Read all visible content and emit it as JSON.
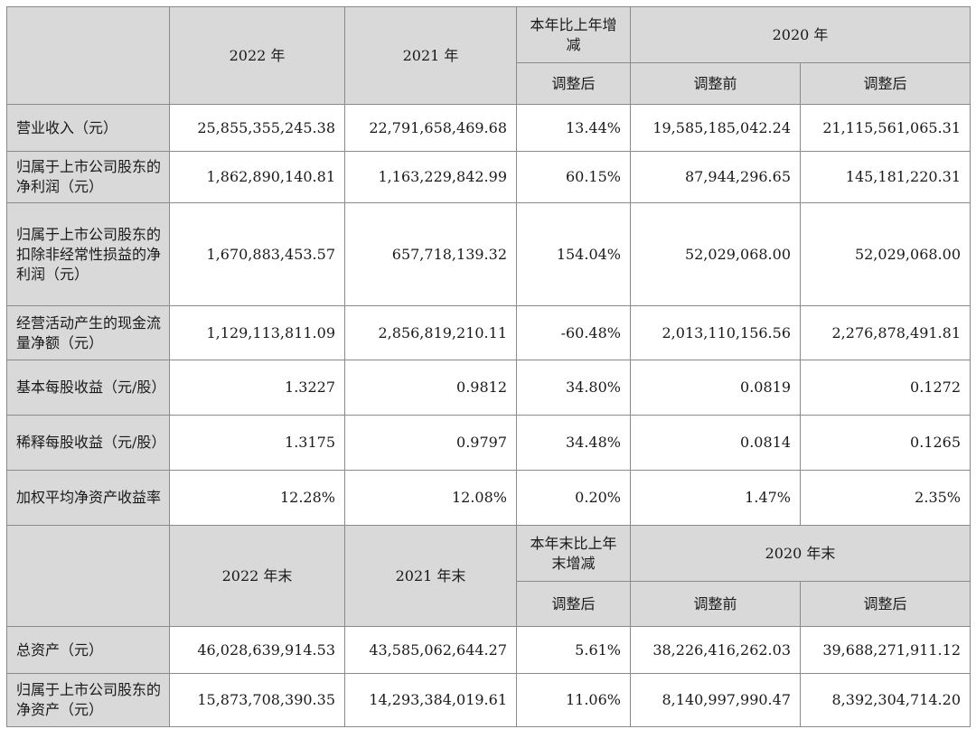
{
  "header1": {
    "col_2022": "2022 年",
    "col_2021": "2021 年",
    "col_change": "本年比上年增减",
    "col_2020": "2020 年",
    "sub_change": "调整后",
    "sub_before": "调整前",
    "sub_after": "调整后"
  },
  "rows1": [
    {
      "label": "营业收入（元）",
      "v2022": "25,855,355,245.38",
      "v2021": "22,791,658,469.68",
      "change": "13.44%",
      "before": "19,585,185,042.24",
      "after": "21,115,561,065.31"
    },
    {
      "label": "归属于上市公司股东的净利润（元）",
      "v2022": "1,862,890,140.81",
      "v2021": "1,163,229,842.99",
      "change": "60.15%",
      "before": "87,944,296.65",
      "after": "145,181,220.31"
    },
    {
      "label": "归属于上市公司股东的扣除非经常性损益的净利润（元）",
      "v2022": "1,670,883,453.57",
      "v2021": "657,718,139.32",
      "change": "154.04%",
      "before": "52,029,068.00",
      "after": "52,029,068.00"
    },
    {
      "label": "经营活动产生的现金流量净额（元）",
      "v2022": "1,129,113,811.09",
      "v2021": "2,856,819,210.11",
      "change": "-60.48%",
      "before": "2,013,110,156.56",
      "after": "2,276,878,491.81"
    },
    {
      "label": "基本每股收益（元/股）",
      "v2022": "1.3227",
      "v2021": "0.9812",
      "change": "34.80%",
      "before": "0.0819",
      "after": "0.1272"
    },
    {
      "label": "稀释每股收益（元/股）",
      "v2022": "1.3175",
      "v2021": "0.9797",
      "change": "34.48%",
      "before": "0.0814",
      "after": "0.1265"
    },
    {
      "label": "加权平均净资产收益率",
      "v2022": "12.28%",
      "v2021": "12.08%",
      "change": "0.20%",
      "before": "1.47%",
      "after": "2.35%"
    }
  ],
  "header2": {
    "col_2022": "2022 年末",
    "col_2021": "2021 年末",
    "col_change": "本年末比上年末增减",
    "col_2020": "2020 年末",
    "sub_change": "调整后",
    "sub_before": "调整前",
    "sub_after": "调整后"
  },
  "rows2": [
    {
      "label": "总资产（元）",
      "v2022": "46,028,639,914.53",
      "v2021": "43,585,062,644.27",
      "change": "5.61%",
      "before": "38,226,416,262.03",
      "after": "39,688,271,911.12"
    },
    {
      "label": "归属于上市公司股东的净资产（元）",
      "v2022": "15,873,708,390.35",
      "v2021": "14,293,384,019.61",
      "change": "11.06%",
      "before": "8,140,997,990.47",
      "after": "8,392,304,714.20"
    }
  ]
}
